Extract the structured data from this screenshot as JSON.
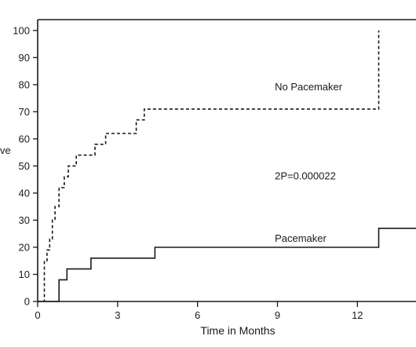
{
  "chart_data": {
    "type": "line",
    "title": "",
    "xlabel": "Time in Months",
    "ylabel": "ve",
    "xlim": [
      0,
      14.2
    ],
    "ylim": [
      0,
      100
    ],
    "x_ticks": [
      0,
      3,
      6,
      9,
      12
    ],
    "y_ticks": [
      0,
      10,
      20,
      30,
      40,
      50,
      60,
      70,
      80,
      90,
      100
    ],
    "grid": false,
    "series": [
      {
        "name": "No Pacemaker",
        "style": "dashed-step",
        "color": "#1a1a1a",
        "points": [
          [
            0,
            0
          ],
          [
            0.25,
            0
          ],
          [
            0.25,
            15
          ],
          [
            0.35,
            15
          ],
          [
            0.35,
            19
          ],
          [
            0.45,
            19
          ],
          [
            0.45,
            23
          ],
          [
            0.55,
            23
          ],
          [
            0.55,
            30
          ],
          [
            0.65,
            30
          ],
          [
            0.65,
            35
          ],
          [
            0.8,
            35
          ],
          [
            0.8,
            42
          ],
          [
            1.0,
            42
          ],
          [
            1.0,
            46
          ],
          [
            1.15,
            46
          ],
          [
            1.15,
            50
          ],
          [
            1.45,
            50
          ],
          [
            1.45,
            54
          ],
          [
            2.15,
            54
          ],
          [
            2.15,
            58
          ],
          [
            2.55,
            58
          ],
          [
            2.55,
            62
          ],
          [
            3.7,
            62
          ],
          [
            3.7,
            67
          ],
          [
            4.0,
            67
          ],
          [
            4.0,
            71
          ],
          [
            12.8,
            71
          ],
          [
            12.8,
            100
          ]
        ]
      },
      {
        "name": "Pacemaker",
        "style": "solid-step",
        "color": "#1a1a1a",
        "points": [
          [
            0,
            0
          ],
          [
            0.8,
            0
          ],
          [
            0.8,
            8
          ],
          [
            1.1,
            8
          ],
          [
            1.1,
            12
          ],
          [
            2.0,
            12
          ],
          [
            2.0,
            16
          ],
          [
            4.4,
            16
          ],
          [
            4.4,
            20
          ],
          [
            12.8,
            20
          ],
          [
            12.8,
            27
          ],
          [
            14.2,
            27
          ]
        ]
      }
    ],
    "annotations": [
      {
        "text": "No Pacemaker",
        "x": 8.9,
        "y": 78
      },
      {
        "text": "2P=0.000022",
        "x": 8.9,
        "y": 45
      },
      {
        "text": "Pacemaker",
        "x": 8.9,
        "y": 22
      }
    ]
  }
}
